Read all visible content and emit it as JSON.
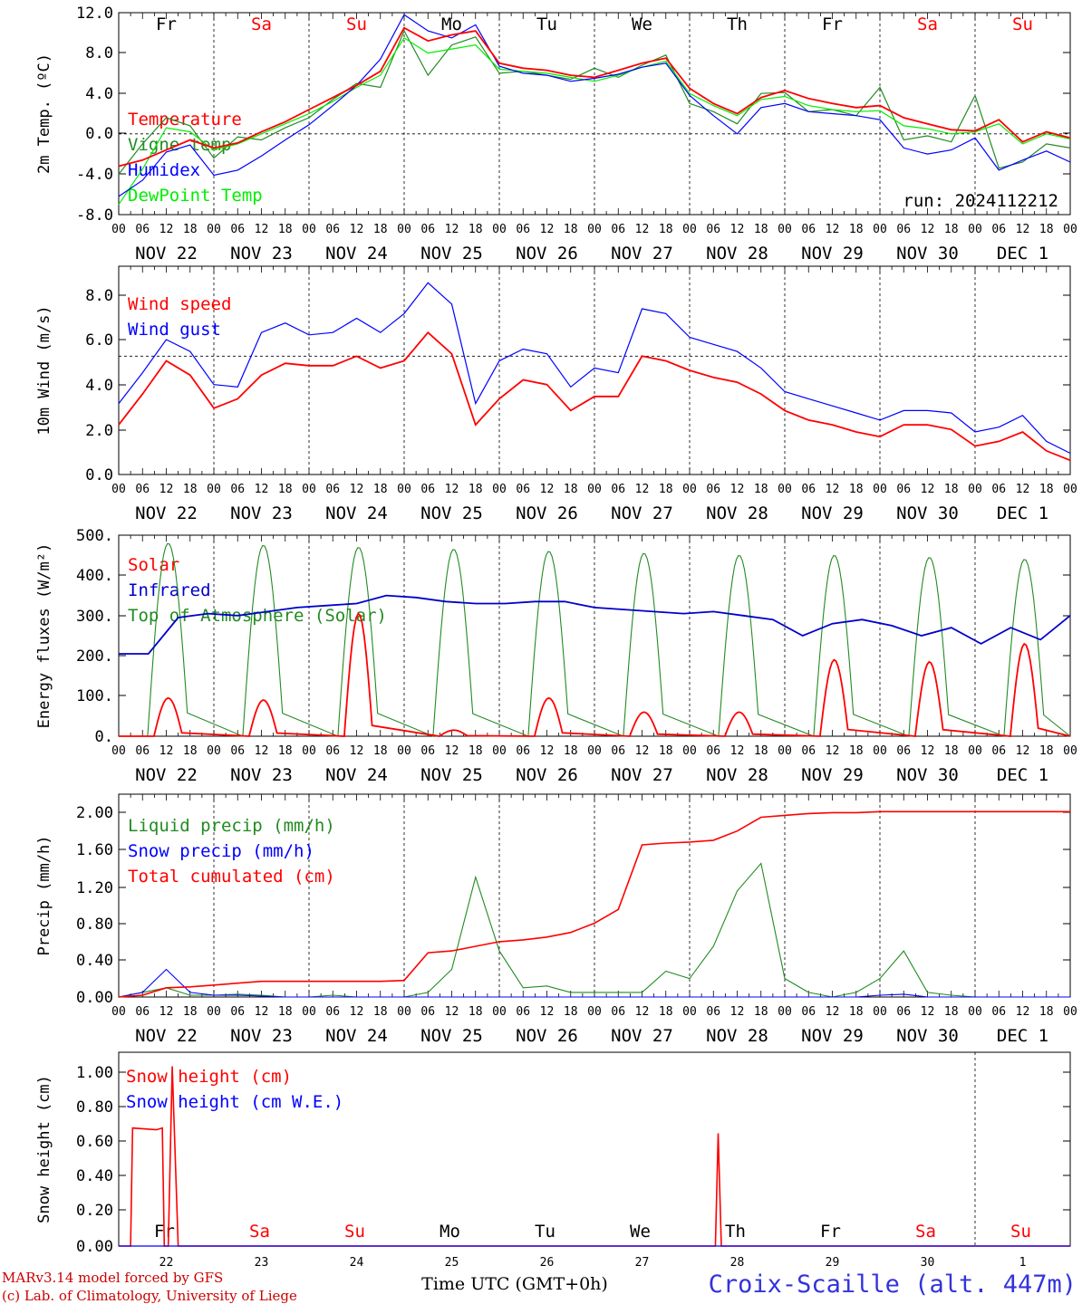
{
  "run": "run: 2024112212",
  "time_axis": {
    "hour_labels": [
      "00",
      "06",
      "12",
      "18"
    ],
    "end_label": "00",
    "date_labels": [
      "NOV 22",
      "NOV 23",
      "NOV 24",
      "NOV 25",
      "NOV 26",
      "NOV 27",
      "NOV 28",
      "NOV 29",
      "NOV 30",
      "DEC  1"
    ],
    "weekdays": [
      "Fr",
      "Sa",
      "Su",
      "Mo",
      "Tu",
      "We",
      "Th",
      "Fr",
      "Sa",
      "Su"
    ],
    "weekday_colors": [
      "#000000",
      "#ff0000",
      "#ff0000",
      "#000000",
      "#000000",
      "#000000",
      "#000000",
      "#000000",
      "#ff0000",
      "#ff0000"
    ],
    "day_numbers": [
      "22",
      "23",
      "24",
      "25",
      "26",
      "27",
      "28",
      "29",
      "30",
      "1"
    ]
  },
  "footer": {
    "credit1": "MARv3.14 model forced by GFS",
    "credit2": "(c) Lab. of Climatology, University of Liege",
    "xlabel": "Time UTC (GMT+0h)",
    "station": "Croix-Scaille (alt. 447m)"
  },
  "chart_data": [
    {
      "type": "line",
      "ylabel": "2m Temp. (ºC)",
      "ylim": [
        -8,
        12
      ],
      "yticks": [
        "-8.0",
        "-4.0",
        "0.0",
        "4.0",
        "8.0",
        "12.0"
      ],
      "reference_line": 0,
      "x": [
        0,
        6,
        12,
        18,
        24,
        30,
        36,
        42,
        48,
        54,
        60,
        66,
        72,
        78,
        84,
        90,
        96,
        102,
        108,
        114,
        120,
        126,
        132,
        138,
        144,
        150,
        156,
        162,
        168,
        174,
        180,
        186,
        192,
        198,
        204,
        210,
        216,
        222,
        228,
        234,
        240
      ],
      "series": [
        {
          "name": "Temperature",
          "color": "#ff0000",
          "values": [
            -3.2,
            -2.6,
            -1.6,
            -0.6,
            -1.4,
            -0.9,
            0.2,
            1.2,
            2.4,
            3.6,
            4.8,
            6.2,
            10.5,
            9.2,
            9.8,
            10.2,
            7.0,
            6.5,
            6.3,
            5.8,
            5.6,
            6.3,
            7.0,
            7.5,
            4.5,
            3.0,
            2.0,
            3.6,
            4.3,
            3.5,
            3.0,
            2.6,
            2.8,
            1.6,
            1.0,
            0.4,
            0.3,
            1.4,
            -0.8,
            0.2,
            -0.4
          ]
        },
        {
          "name": "Vigne temp",
          "color": "#228b22",
          "values": [
            -4.0,
            -1.0,
            1.6,
            0.8,
            -2.4,
            -0.3,
            -0.6,
            0.6,
            1.6,
            3.4,
            5.0,
            4.6,
            10.2,
            5.8,
            8.8,
            9.6,
            6.0,
            6.2,
            5.8,
            5.4,
            6.5,
            5.6,
            6.8,
            7.8,
            3.0,
            2.2,
            1.0,
            4.0,
            4.1,
            2.2,
            2.4,
            1.8,
            4.6,
            -0.6,
            -0.2,
            -0.8,
            3.8,
            -3.4,
            -2.8,
            -1.0,
            -1.4
          ]
        },
        {
          "name": "Humidex",
          "color": "#0000ff",
          "values": [
            -6.2,
            -4.6,
            -1.8,
            -1.1,
            -4.1,
            -3.6,
            -2.2,
            -0.6,
            0.9,
            2.8,
            4.8,
            7.4,
            11.8,
            10.2,
            9.5,
            10.8,
            6.7,
            6.0,
            5.8,
            5.2,
            5.5,
            5.9,
            6.6,
            7.0,
            3.8,
            1.8,
            0.0,
            2.6,
            3.0,
            2.2,
            2.0,
            1.8,
            1.4,
            -1.4,
            -2.0,
            -1.6,
            -0.4,
            -3.6,
            -2.6,
            -1.7,
            -2.8
          ]
        },
        {
          "name": "DewPoint Temp",
          "color": "#00ee00",
          "values": [
            -7.0,
            -3.5,
            0.6,
            0.2,
            -1.6,
            -1.0,
            0.0,
            1.0,
            2.0,
            3.2,
            4.6,
            5.8,
            9.5,
            8.0,
            8.4,
            8.8,
            6.4,
            6.2,
            6.0,
            5.6,
            5.2,
            5.8,
            6.6,
            7.2,
            4.0,
            2.8,
            1.8,
            3.4,
            3.7,
            2.8,
            2.4,
            2.2,
            2.3,
            0.8,
            0.5,
            0.0,
            0.2,
            1.0,
            -1.0,
            0.0,
            -0.5
          ]
        }
      ],
      "annotation": "run: 2024112212"
    },
    {
      "type": "line",
      "ylabel": "10m Wind (m/s)",
      "ylim": [
        0,
        8.8
      ],
      "yticks": [
        "0.0",
        "2.0",
        "4.0",
        "6.0",
        "8.0"
      ],
      "reference_line": 5,
      "x": [
        0,
        6,
        12,
        18,
        24,
        30,
        36,
        42,
        48,
        54,
        60,
        66,
        72,
        78,
        84,
        90,
        96,
        102,
        108,
        114,
        120,
        126,
        132,
        138,
        144,
        150,
        156,
        162,
        168,
        174,
        180,
        186,
        192,
        198,
        204,
        210,
        216,
        222,
        228,
        234,
        240
      ],
      "series": [
        {
          "name": "Wind speed",
          "color": "#ff0000",
          "values": [
            2.1,
            3.4,
            4.8,
            4.2,
            2.8,
            3.2,
            4.2,
            4.7,
            4.6,
            4.6,
            5.0,
            4.5,
            4.8,
            6.0,
            5.1,
            2.1,
            3.2,
            4.0,
            3.8,
            2.7,
            3.3,
            3.3,
            5.0,
            4.8,
            4.4,
            4.1,
            3.9,
            3.4,
            2.7,
            2.3,
            2.1,
            1.8,
            1.6,
            2.1,
            2.1,
            1.9,
            1.2,
            1.4,
            1.8,
            1.0,
            0.6
          ]
        },
        {
          "name": "Wind gust",
          "color": "#0000ff",
          "values": [
            3.0,
            4.3,
            5.7,
            5.2,
            3.8,
            3.7,
            6.0,
            6.4,
            5.9,
            6.0,
            6.6,
            6.0,
            6.8,
            8.1,
            7.2,
            3.0,
            4.8,
            5.3,
            5.1,
            3.7,
            4.5,
            4.3,
            7.0,
            6.8,
            5.8,
            5.5,
            5.2,
            4.5,
            3.5,
            3.2,
            2.9,
            2.6,
            2.3,
            2.7,
            2.7,
            2.6,
            1.8,
            2.0,
            2.5,
            1.4,
            0.9
          ]
        }
      ]
    },
    {
      "type": "line",
      "ylabel": "Energy fluxes (W/m²)",
      "ylim": [
        0,
        500
      ],
      "yticks": [
        "0.",
        "100.",
        "200.",
        "300.",
        "400.",
        "500."
      ],
      "x_solar_note": "daily peaks",
      "series": [
        {
          "name": "Solar",
          "color": "#ff0000",
          "peaks": [
            95,
            90,
            305,
            15,
            95,
            60,
            60,
            190,
            185,
            230
          ]
        },
        {
          "name": "Infrared",
          "color": "#0000cc",
          "values": [
            205,
            205,
            295,
            305,
            300,
            310,
            320,
            325,
            330,
            350,
            345,
            335,
            330,
            330,
            335,
            335,
            320,
            315,
            310,
            305,
            310,
            300,
            290,
            250,
            280,
            290,
            275,
            250,
            270,
            230,
            270,
            240,
            300
          ]
        },
        {
          "name": "Top of Atmosphere (Solar)",
          "color": "#228b22",
          "peaks": [
            480,
            475,
            470,
            465,
            460,
            455,
            450,
            450,
            445,
            440
          ]
        }
      ]
    },
    {
      "type": "line",
      "ylabel": "Precip (mm/h)",
      "ylim": [
        0,
        2.2
      ],
      "yticks": [
        "0.00",
        "0.40",
        "0.80",
        "1.20",
        "1.60",
        "2.00"
      ],
      "series": [
        {
          "name": "Liquid precip (mm/h)",
          "color": "#228b22",
          "values": [
            0.0,
            0.05,
            0.1,
            0.02,
            0.02,
            0.03,
            0.02,
            0.0,
            0.0,
            0.02,
            0.0,
            0.0,
            0.0,
            0.05,
            0.3,
            1.3,
            0.5,
            0.1,
            0.12,
            0.05,
            0.05,
            0.05,
            0.05,
            0.28,
            0.2,
            0.55,
            1.15,
            1.45,
            0.2,
            0.05,
            0.0,
            0.05,
            0.2,
            0.5,
            0.05,
            0.02,
            0.0,
            0.0,
            0.0,
            0.0,
            0.0
          ]
        },
        {
          "name": "Snow precip (mm/h)",
          "color": "#0000ff",
          "values": [
            0.0,
            0.05,
            0.3,
            0.05,
            0.02,
            0.02,
            0.01,
            0.0,
            0.0,
            0.0,
            0.0,
            0.0,
            0.0,
            0.0,
            0.0,
            0.0,
            0.0,
            0.0,
            0.0,
            0.0,
            0.0,
            0.0,
            0.0,
            0.0,
            0.0,
            0.0,
            0.0,
            0.0,
            0.0,
            0.0,
            0.0,
            0.0,
            0.02,
            0.03,
            0.0,
            0.0,
            0.0,
            0.0,
            0.0,
            0.0,
            0.0
          ]
        },
        {
          "name": "Total cumulated (cm)",
          "color": "#ff0000",
          "values": [
            0.0,
            0.02,
            0.1,
            0.11,
            0.13,
            0.15,
            0.17,
            0.17,
            0.17,
            0.17,
            0.17,
            0.17,
            0.18,
            0.48,
            0.5,
            0.55,
            0.6,
            0.62,
            0.65,
            0.7,
            0.8,
            0.95,
            1.65,
            1.67,
            1.68,
            1.7,
            1.8,
            1.95,
            1.97,
            1.99,
            2.0,
            2.0,
            2.01,
            2.01,
            2.01,
            2.01,
            2.01,
            2.01,
            2.01,
            2.01,
            2.01
          ]
        }
      ]
    },
    {
      "type": "line",
      "ylabel": "Snow height (cm)",
      "ylim": [
        0,
        1.1
      ],
      "yticks": [
        "0.00",
        "0.20",
        "0.40",
        "0.60",
        "0.80",
        "1.00"
      ],
      "series": [
        {
          "name": "Snow height (cm)",
          "color": "#ff0000"
        },
        {
          "name": "Snow height (cm W.E.)",
          "color": "#0000ff"
        }
      ],
      "snow_events": [
        {
          "start_hours": 3.0,
          "end_hours": 11.5,
          "values": [
            0.67,
            0.66,
            0.67
          ]
        },
        {
          "start_hours": 12.5,
          "end_hours": 15.0,
          "peak": 1.02
        },
        {
          "start_hours": 150.5,
          "end_hours": 152.0,
          "peak": 0.64
        }
      ]
    }
  ]
}
